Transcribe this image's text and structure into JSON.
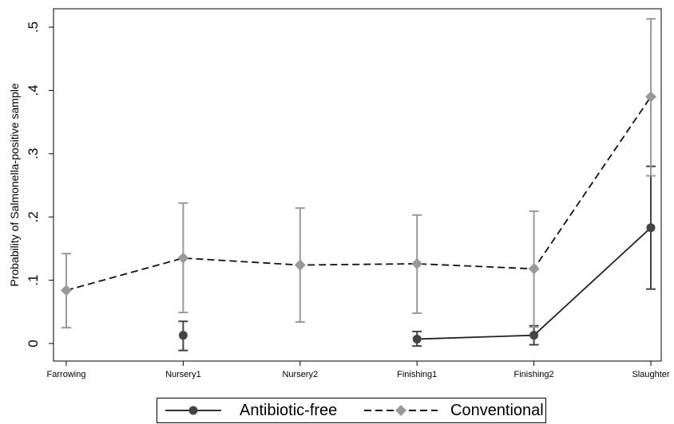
{
  "chart_data": {
    "type": "line",
    "title": "",
    "xlabel": "",
    "ylabel": "Probability of Salmonella-positive sample",
    "categories": [
      "Farrowing",
      "Nursery1",
      "Nursery2",
      "Finishing1",
      "Finishing2",
      "Slaughter"
    ],
    "yticks": [
      {
        "value": 0,
        "label": "0"
      },
      {
        "value": 0.1,
        "label": ".1"
      },
      {
        "value": 0.2,
        "label": ".2"
      },
      {
        "value": 0.3,
        "label": ".3"
      },
      {
        "value": 0.4,
        "label": ".4"
      },
      {
        "value": 0.5,
        "label": ".5"
      }
    ],
    "ylim": [
      -0.025,
      0.53
    ],
    "grid": false,
    "legend_position": "bottom",
    "series": [
      {
        "name": "Antibiotic-free",
        "color": "#444444",
        "marker": "circle",
        "line_style": "solid",
        "values": [
          null,
          0.013,
          null,
          0.007,
          0.013,
          0.183
        ],
        "ci_low": [
          null,
          -0.011,
          null,
          -0.004,
          -0.002,
          0.086
        ],
        "ci_high": [
          null,
          0.035,
          null,
          0.019,
          0.028,
          0.28
        ],
        "connected_segments": [
          [
            3,
            5
          ]
        ]
      },
      {
        "name": "Conventional",
        "color": "#999999",
        "marker": "diamond",
        "line_style": "dashed",
        "values": [
          0.084,
          0.135,
          0.124,
          0.126,
          0.118,
          0.39
        ],
        "ci_low": [
          0.025,
          0.049,
          0.034,
          0.048,
          0.026,
          0.265
        ],
        "ci_high": [
          0.142,
          0.222,
          0.214,
          0.203,
          0.209,
          0.513
        ],
        "connected_segments": [
          [
            0,
            5
          ]
        ]
      }
    ]
  },
  "legend": {
    "items": [
      {
        "label": "Antibiotic-free"
      },
      {
        "label": "Conventional"
      }
    ]
  }
}
